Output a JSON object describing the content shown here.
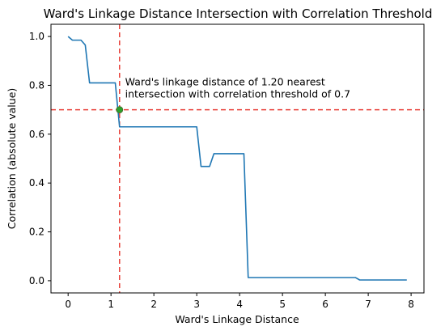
{
  "chart_data": {
    "type": "line",
    "title": "Ward's Linkage Distance Intersection with Correlation Threshold",
    "xlabel": "Ward's Linkage Distance",
    "ylabel": "Correlation (absolute value)",
    "xlim": [
      -0.4,
      8.3
    ],
    "ylim": [
      -0.05,
      1.05
    ],
    "x_ticks": [
      0,
      1,
      2,
      3,
      4,
      5,
      6,
      7,
      8
    ],
    "x_tick_labels": [
      "0",
      "1",
      "2",
      "3",
      "4",
      "5",
      "6",
      "7",
      "8"
    ],
    "y_ticks": [
      0.0,
      0.2,
      0.4,
      0.6,
      0.8,
      1.0
    ],
    "y_tick_labels": [
      "0.0",
      "0.2",
      "0.4",
      "0.6",
      "0.8",
      "1.0"
    ],
    "grid": false,
    "series": [
      {
        "color": "#1f77b4",
        "x": [
          0.0,
          0.1,
          0.3,
          0.4,
          0.5,
          1.0,
          1.1,
          1.2,
          3.0,
          3.1,
          3.3,
          3.4,
          4.1,
          4.2,
          6.7,
          6.8,
          7.9
        ],
        "y": [
          1.0,
          0.985,
          0.985,
          0.965,
          0.81,
          0.81,
          0.81,
          0.63,
          0.63,
          0.468,
          0.468,
          0.52,
          0.52,
          0.013,
          0.013,
          0.003,
          0.003
        ]
      }
    ],
    "threshold_line": {
      "orientation": "horizontal",
      "y": 0.7,
      "color": "#e8413a",
      "style": "dashed"
    },
    "distance_line": {
      "orientation": "vertical",
      "x": 1.2,
      "color": "#e8413a",
      "style": "dashed"
    },
    "intersection_point": {
      "x": 1.2,
      "y": 0.7,
      "color": "#2ca02c"
    },
    "annotation": {
      "x": 1.33,
      "y": 0.8,
      "lines": [
        "Ward's linkage distance of 1.20 nearest",
        "intersection with correlation threshold of 0.7"
      ]
    }
  }
}
